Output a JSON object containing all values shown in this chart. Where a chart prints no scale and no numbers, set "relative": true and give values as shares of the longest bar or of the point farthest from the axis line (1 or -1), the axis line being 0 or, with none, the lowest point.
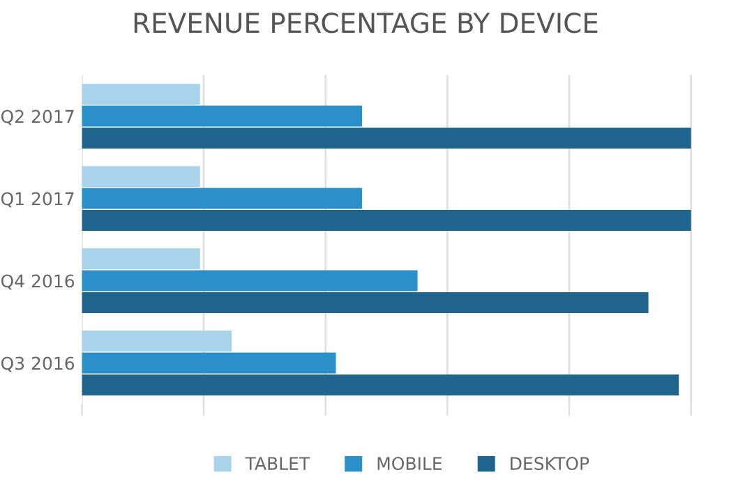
{
  "chart_data": {
    "type": "bar",
    "orientation": "horizontal",
    "relative": true,
    "title": "REVENUE PERCENTAGE BY DEVICE",
    "categories": [
      "Q2 2017",
      "Q1 2017",
      "Q4 2016",
      "Q3 2016"
    ],
    "series": [
      {
        "name": "TABLET",
        "color": "#a9d3ea",
        "values": [
          0.194,
          0.194,
          0.194,
          0.246
        ]
      },
      {
        "name": "MOBILE",
        "color": "#2b8fca",
        "values": [
          0.46,
          0.46,
          0.551,
          0.417
        ]
      },
      {
        "name": "DESKTOP",
        "color": "#1f648c",
        "values": [
          1,
          1,
          0.93,
          0.98
        ]
      }
    ],
    "grid": "x",
    "legend": "bottom"
  }
}
